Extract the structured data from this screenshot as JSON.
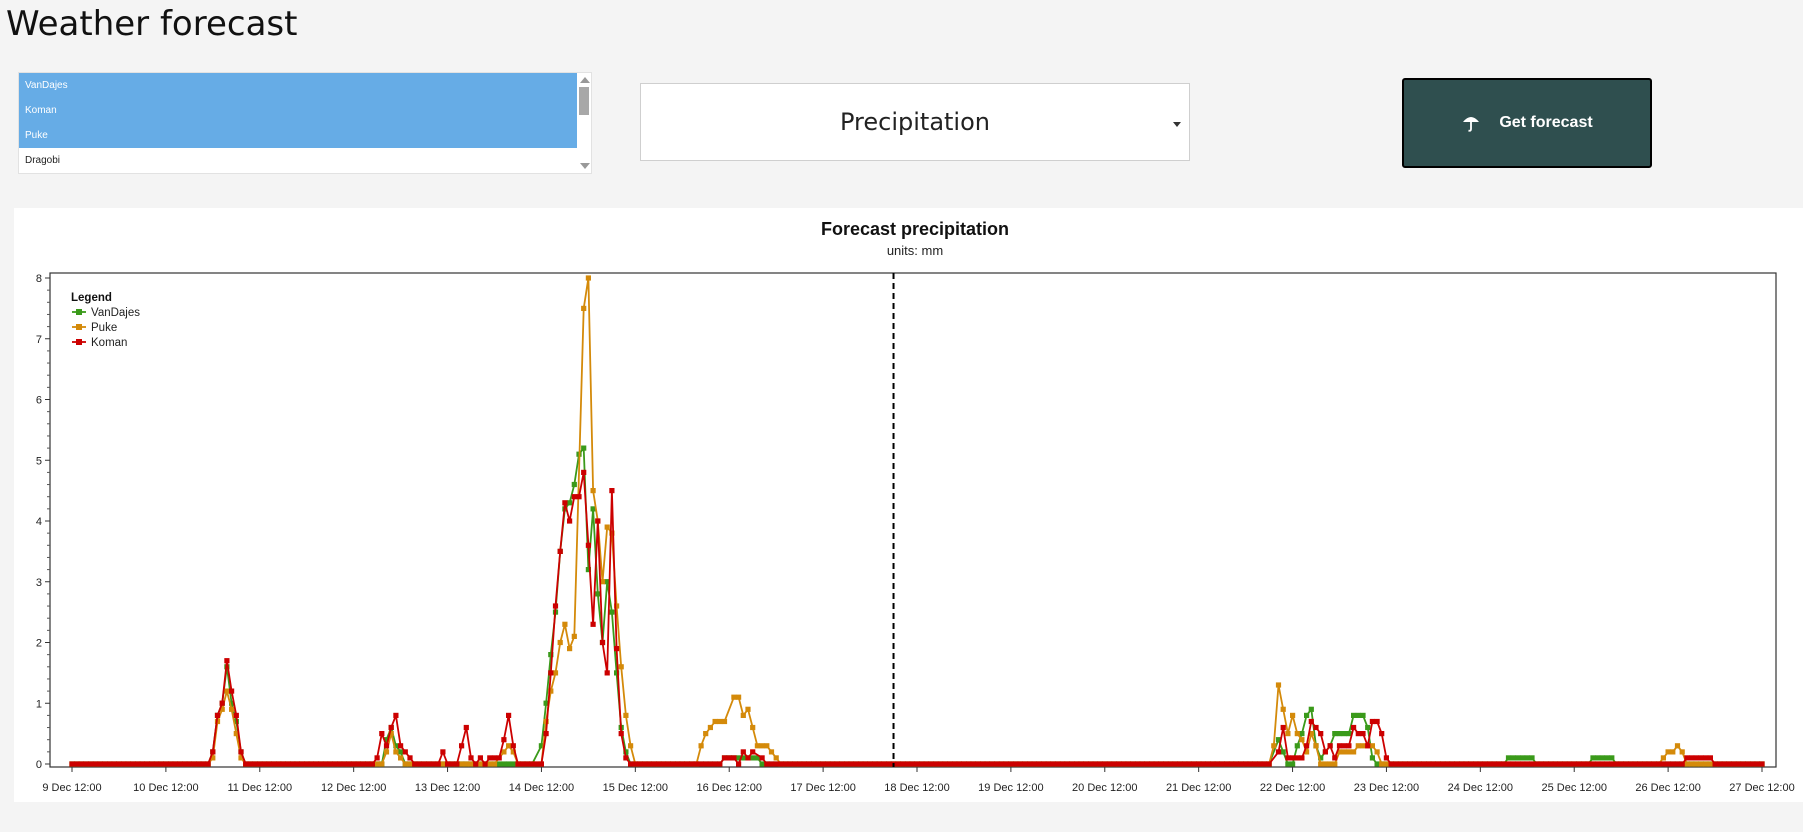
{
  "page": {
    "title": "Weather forecast"
  },
  "locations": {
    "items": [
      {
        "label": "VanDajes",
        "selected": true
      },
      {
        "label": "Koman",
        "selected": true
      },
      {
        "label": "Puke",
        "selected": true
      },
      {
        "label": "Dragobi",
        "selected": false
      }
    ]
  },
  "variable_select": {
    "value": "Precipitation"
  },
  "forecast_button": {
    "label": "Get forecast",
    "icon": "umbrella-icon"
  },
  "chart_data": {
    "type": "line",
    "title": "Forecast precipitation",
    "subtitle": "units: mm",
    "xlabel": "",
    "ylabel": "",
    "xlim": [
      "9 Dec 12:00",
      "27 Dec 12:00"
    ],
    "ylim": [
      0,
      8
    ],
    "yticks": [
      0,
      1,
      2,
      3,
      4,
      5,
      6,
      7,
      8
    ],
    "xticks": [
      "9 Dec 12:00",
      "10 Dec 12:00",
      "11 Dec 12:00",
      "12 Dec 12:00",
      "13 Dec 12:00",
      "14 Dec 12:00",
      "15 Dec 12:00",
      "16 Dec 12:00",
      "17 Dec 12:00",
      "18 Dec 12:00",
      "19 Dec 12:00",
      "20 Dec 12:00",
      "21 Dec 12:00",
      "22 Dec 12:00",
      "23 Dec 12:00",
      "24 Dec 12:00",
      "25 Dec 12:00",
      "26 Dec 12:00",
      "27 Dec 12:00"
    ],
    "x_unit": "days after 9 Dec 12:00",
    "now_marker": {
      "x": 8.75,
      "style": "dashed"
    },
    "legend": {
      "title": "Legend",
      "position": "top-left"
    },
    "series": [
      {
        "name": "VanDajes",
        "color": "#3a9a1a",
        "points": [
          [
            0,
            0
          ],
          [
            1.45,
            0
          ],
          [
            1.5,
            0.2
          ],
          [
            1.55,
            0.8
          ],
          [
            1.6,
            1.0
          ],
          [
            1.65,
            1.6
          ],
          [
            1.7,
            1.0
          ],
          [
            1.75,
            0.7
          ],
          [
            1.8,
            0.2
          ],
          [
            1.85,
            0
          ],
          [
            3.25,
            0
          ],
          [
            3.3,
            0
          ],
          [
            3.35,
            0.4
          ],
          [
            3.4,
            0.6
          ],
          [
            3.45,
            0.3
          ],
          [
            3.5,
            0.2
          ],
          [
            3.55,
            0
          ],
          [
            4.9,
            0
          ],
          [
            5.0,
            0.3
          ],
          [
            5.05,
            1.0
          ],
          [
            5.1,
            1.8
          ],
          [
            5.15,
            2.5
          ],
          [
            5.2,
            3.5
          ],
          [
            5.25,
            4.2
          ],
          [
            5.3,
            4.3
          ],
          [
            5.35,
            4.6
          ],
          [
            5.4,
            5.1
          ],
          [
            5.45,
            5.2
          ],
          [
            5.5,
            3.2
          ],
          [
            5.55,
            4.2
          ],
          [
            5.6,
            2.8
          ],
          [
            5.65,
            2.0
          ],
          [
            5.7,
            3.0
          ],
          [
            5.75,
            2.5
          ],
          [
            5.8,
            1.5
          ],
          [
            5.85,
            0.6
          ],
          [
            5.9,
            0.2
          ],
          [
            5.95,
            0
          ],
          [
            6.9,
            0
          ],
          [
            6.95,
            0.1
          ],
          [
            7.3,
            0.1
          ],
          [
            7.35,
            0
          ],
          [
            12.75,
            0
          ],
          [
            12.85,
            0.4
          ],
          [
            12.9,
            0.2
          ],
          [
            12.95,
            0
          ],
          [
            13.0,
            0
          ],
          [
            13.05,
            0.3
          ],
          [
            13.1,
            0.5
          ],
          [
            13.15,
            0.8
          ],
          [
            13.2,
            0.9
          ],
          [
            13.25,
            0.3
          ],
          [
            13.3,
            0.1
          ],
          [
            13.35,
            0.2
          ],
          [
            13.4,
            0.3
          ],
          [
            13.45,
            0.5
          ],
          [
            13.6,
            0.5
          ],
          [
            13.65,
            0.8
          ],
          [
            13.75,
            0.8
          ],
          [
            13.8,
            0.6
          ],
          [
            13.85,
            0.1
          ],
          [
            13.9,
            0
          ],
          [
            15.25,
            0
          ],
          [
            15.3,
            0.1
          ],
          [
            15.55,
            0.1
          ],
          [
            15.6,
            0
          ],
          [
            16.15,
            0
          ],
          [
            16.2,
            0.1
          ],
          [
            16.4,
            0.1
          ],
          [
            16.45,
            0
          ],
          [
            18,
            0
          ]
        ]
      },
      {
        "name": "Puke",
        "color": "#d48a0a",
        "points": [
          [
            0,
            0
          ],
          [
            1.45,
            0
          ],
          [
            1.5,
            0.1
          ],
          [
            1.55,
            0.7
          ],
          [
            1.6,
            0.9
          ],
          [
            1.65,
            1.2
          ],
          [
            1.7,
            0.9
          ],
          [
            1.75,
            0.5
          ],
          [
            1.8,
            0.1
          ],
          [
            1.85,
            0
          ],
          [
            3.3,
            0
          ],
          [
            3.35,
            0.2
          ],
          [
            3.4,
            0.5
          ],
          [
            3.45,
            0.2
          ],
          [
            3.5,
            0.1
          ],
          [
            3.55,
            0
          ],
          [
            4.5,
            0
          ],
          [
            4.6,
            0.2
          ],
          [
            4.65,
            0.3
          ],
          [
            4.7,
            0.2
          ],
          [
            4.75,
            0
          ],
          [
            5.0,
            0
          ],
          [
            5.05,
            0.7
          ],
          [
            5.1,
            1.2
          ],
          [
            5.15,
            1.5
          ],
          [
            5.2,
            2.0
          ],
          [
            5.25,
            2.3
          ],
          [
            5.3,
            1.9
          ],
          [
            5.35,
            2.1
          ],
          [
            5.45,
            7.5
          ],
          [
            5.5,
            8.0
          ],
          [
            5.55,
            4.5
          ],
          [
            5.6,
            4.0
          ],
          [
            5.65,
            3.0
          ],
          [
            5.7,
            3.9
          ],
          [
            5.75,
            3.8
          ],
          [
            5.8,
            2.6
          ],
          [
            5.85,
            1.6
          ],
          [
            5.9,
            0.8
          ],
          [
            5.95,
            0.3
          ],
          [
            6.0,
            0
          ],
          [
            6.65,
            0
          ],
          [
            6.7,
            0.3
          ],
          [
            6.75,
            0.5
          ],
          [
            6.8,
            0.6
          ],
          [
            6.85,
            0.7
          ],
          [
            6.95,
            0.7
          ],
          [
            7.05,
            1.1
          ],
          [
            7.1,
            1.1
          ],
          [
            7.15,
            0.8
          ],
          [
            7.2,
            0.9
          ],
          [
            7.25,
            0.6
          ],
          [
            7.3,
            0.3
          ],
          [
            7.4,
            0.3
          ],
          [
            7.45,
            0.2
          ],
          [
            7.5,
            0.1
          ],
          [
            7.55,
            0
          ],
          [
            12.75,
            0
          ],
          [
            12.8,
            0.3
          ],
          [
            12.85,
            1.3
          ],
          [
            12.9,
            0.9
          ],
          [
            12.95,
            0.5
          ],
          [
            13.0,
            0.8
          ],
          [
            13.05,
            0.5
          ],
          [
            13.1,
            0.4
          ],
          [
            13.15,
            0.2
          ],
          [
            13.2,
            0.5
          ],
          [
            13.25,
            0.3
          ],
          [
            13.3,
            0
          ],
          [
            13.45,
            0
          ],
          [
            13.5,
            0.2
          ],
          [
            13.65,
            0.2
          ],
          [
            13.7,
            0.3
          ],
          [
            13.85,
            0.3
          ],
          [
            13.9,
            0.2
          ],
          [
            13.95,
            0
          ],
          [
            16.9,
            0
          ],
          [
            16.95,
            0.1
          ],
          [
            17.0,
            0.2
          ],
          [
            17.05,
            0.2
          ],
          [
            17.1,
            0.3
          ],
          [
            17.15,
            0.2
          ],
          [
            17.2,
            0
          ],
          [
            18,
            0
          ]
        ]
      },
      {
        "name": "Koman",
        "color": "#cc0000",
        "points": [
          [
            0,
            0
          ],
          [
            1.45,
            0
          ],
          [
            1.5,
            0.2
          ],
          [
            1.55,
            0.8
          ],
          [
            1.6,
            1.0
          ],
          [
            1.65,
            1.7
          ],
          [
            1.7,
            1.2
          ],
          [
            1.75,
            0.8
          ],
          [
            1.8,
            0.2
          ],
          [
            1.85,
            0
          ],
          [
            3.2,
            0
          ],
          [
            3.25,
            0.1
          ],
          [
            3.3,
            0.5
          ],
          [
            3.35,
            0.3
          ],
          [
            3.4,
            0.6
          ],
          [
            3.45,
            0.8
          ],
          [
            3.5,
            0.3
          ],
          [
            3.55,
            0.2
          ],
          [
            3.6,
            0.1
          ],
          [
            3.65,
            0
          ],
          [
            3.9,
            0
          ],
          [
            3.95,
            0.2
          ],
          [
            4.0,
            0
          ],
          [
            4.1,
            0
          ],
          [
            4.15,
            0.3
          ],
          [
            4.2,
            0.6
          ],
          [
            4.25,
            0.1
          ],
          [
            4.3,
            0
          ],
          [
            4.35,
            0.1
          ],
          [
            4.4,
            0
          ],
          [
            4.45,
            0.1
          ],
          [
            4.55,
            0.1
          ],
          [
            4.6,
            0.4
          ],
          [
            4.65,
            0.8
          ],
          [
            4.7,
            0.3
          ],
          [
            4.75,
            0
          ],
          [
            5.0,
            0
          ],
          [
            5.05,
            0.5
          ],
          [
            5.1,
            1.5
          ],
          [
            5.15,
            2.6
          ],
          [
            5.2,
            3.5
          ],
          [
            5.25,
            4.3
          ],
          [
            5.3,
            4.0
          ],
          [
            5.35,
            4.4
          ],
          [
            5.4,
            4.4
          ],
          [
            5.45,
            4.8
          ],
          [
            5.5,
            3.6
          ],
          [
            5.55,
            2.3
          ],
          [
            5.6,
            4.0
          ],
          [
            5.65,
            2.0
          ],
          [
            5.7,
            1.5
          ],
          [
            5.75,
            4.5
          ],
          [
            5.8,
            1.9
          ],
          [
            5.85,
            0.5
          ],
          [
            5.9,
            0.1
          ],
          [
            5.95,
            0
          ],
          [
            6.9,
            0
          ],
          [
            6.95,
            0.1
          ],
          [
            7.05,
            0.1
          ],
          [
            7.1,
            0
          ],
          [
            7.15,
            0.2
          ],
          [
            7.2,
            0.1
          ],
          [
            7.25,
            0.2
          ],
          [
            7.35,
            0.1
          ],
          [
            7.4,
            0
          ],
          [
            12.75,
            0
          ],
          [
            12.85,
            0.2
          ],
          [
            12.9,
            0.6
          ],
          [
            12.95,
            0.1
          ],
          [
            13.1,
            0.1
          ],
          [
            13.15,
            0.3
          ],
          [
            13.2,
            0.7
          ],
          [
            13.25,
            0.6
          ],
          [
            13.3,
            0.5
          ],
          [
            13.35,
            0.2
          ],
          [
            13.4,
            0.3
          ],
          [
            13.45,
            0.1
          ],
          [
            13.5,
            0.3
          ],
          [
            13.6,
            0.3
          ],
          [
            13.65,
            0.6
          ],
          [
            13.7,
            0.5
          ],
          [
            13.75,
            0.5
          ],
          [
            13.8,
            0.3
          ],
          [
            13.85,
            0.7
          ],
          [
            13.9,
            0.7
          ],
          [
            13.95,
            0.5
          ],
          [
            14.0,
            0.1
          ],
          [
            14.05,
            0
          ],
          [
            16.9,
            0
          ],
          [
            17.15,
            0
          ],
          [
            17.2,
            0.1
          ],
          [
            17.45,
            0.1
          ],
          [
            17.5,
            0
          ],
          [
            18,
            0
          ]
        ]
      }
    ]
  }
}
